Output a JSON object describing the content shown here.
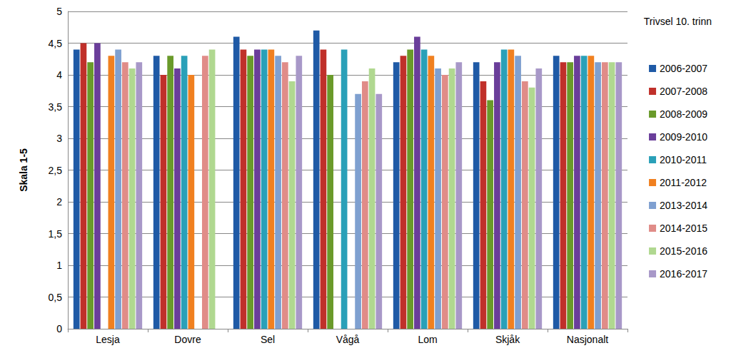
{
  "chart_data": {
    "type": "bar",
    "title": "Trivsel 10. trinn",
    "y_label": "Skala 1-5",
    "categories": [
      "Lesja",
      "Dovre",
      "Sel",
      "Vågå",
      "Lom",
      "Skjåk",
      "Nasjonalt"
    ],
    "series": [
      {
        "name": "2006-2007",
        "color": "#1f5aa6",
        "values": [
          4.4,
          4.3,
          4.6,
          4.7,
          4.2,
          4.2,
          4.3
        ]
      },
      {
        "name": "2007-2008",
        "color": "#c0302a",
        "values": [
          4.5,
          4.0,
          4.4,
          4.4,
          4.3,
          3.9,
          4.2
        ]
      },
      {
        "name": "2008-2009",
        "color": "#6a9a2a",
        "values": [
          4.2,
          4.3,
          4.3,
          4.0,
          4.4,
          3.6,
          4.2
        ]
      },
      {
        "name": "2009-2010",
        "color": "#6a3e9a",
        "values": [
          4.5,
          4.1,
          4.4,
          null,
          4.6,
          4.2,
          4.3
        ]
      },
      {
        "name": "2010-2011",
        "color": "#2aa0b8",
        "values": [
          null,
          4.3,
          4.4,
          4.4,
          4.4,
          4.4,
          4.3
        ]
      },
      {
        "name": "2011-2012",
        "color": "#f08020",
        "values": [
          4.3,
          4.0,
          4.4,
          null,
          4.3,
          4.4,
          4.3
        ]
      },
      {
        "name": "2013-2014",
        "color": "#7fa0d0",
        "values": [
          4.4,
          null,
          4.3,
          3.7,
          4.1,
          4.3,
          4.2
        ]
      },
      {
        "name": "2014-2015",
        "color": "#e08c88",
        "values": [
          4.2,
          4.3,
          4.2,
          3.9,
          4.0,
          3.9,
          4.2
        ]
      },
      {
        "name": "2015-2016",
        "color": "#b0d890",
        "values": [
          4.1,
          4.4,
          3.9,
          4.1,
          4.1,
          3.8,
          4.2
        ]
      },
      {
        "name": "2016-2017",
        "color": "#a898c8",
        "values": [
          4.2,
          null,
          4.3,
          3.7,
          4.2,
          4.1,
          4.2
        ]
      }
    ],
    "ylim": [
      0,
      5
    ],
    "yticks": [
      0,
      {
        "value": 0.5,
        "label": "0,5"
      },
      1,
      {
        "value": 1.5,
        "label": "1,5"
      },
      2,
      {
        "value": 2.5,
        "label": "2,5"
      },
      3,
      {
        "value": 3.5,
        "label": "3,5"
      },
      4,
      {
        "value": 4.5,
        "label": "4,5"
      },
      5
    ],
    "grid": true,
    "legend": "right"
  }
}
